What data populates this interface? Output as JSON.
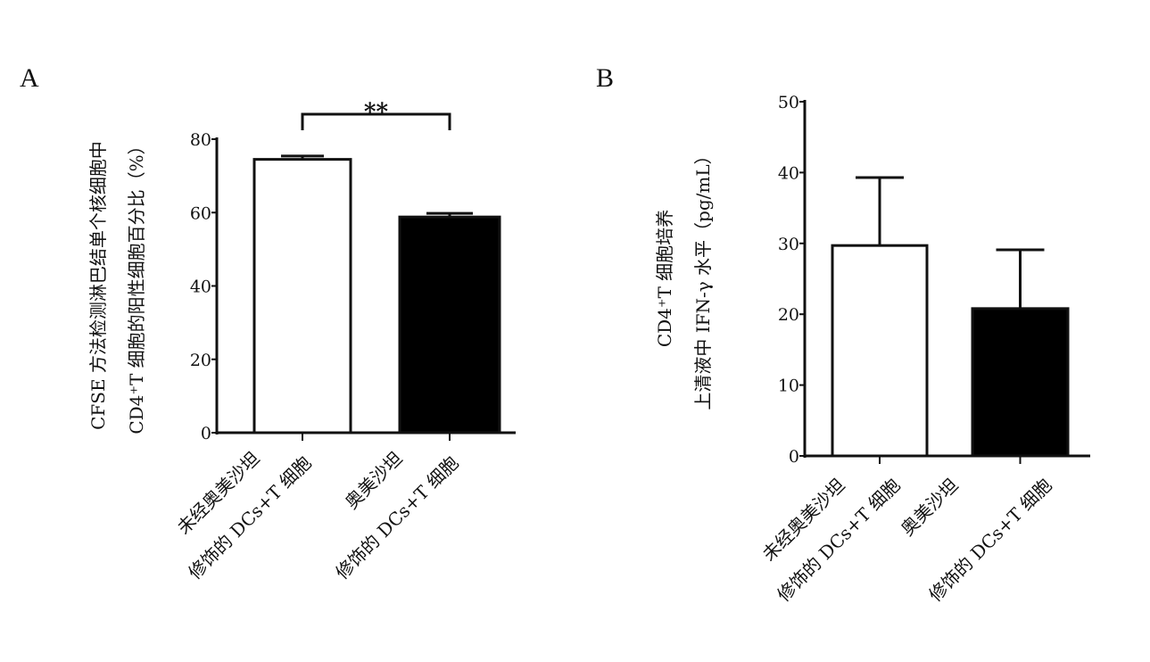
{
  "chart_data": [
    {
      "panel": "A",
      "type": "bar",
      "ylabel_lines": [
        "CFSE 方法检测淋巴结单个核细胞中",
        "CD4⁺T 细胞的阳性细胞百分比（%）"
      ],
      "categories": [
        [
          "未经奥美沙坦",
          "修饰的 DCs+T 细胞"
        ],
        [
          "奥美沙坦",
          "修饰的 DCs+T 细胞"
        ]
      ],
      "values": [
        74.5,
        58.8
      ],
      "error_upper": [
        75.4,
        59.8
      ],
      "bar_colors": [
        "#ffffff",
        "#000000"
      ],
      "ylim": [
        0,
        80
      ],
      "yticks": [
        0,
        20,
        40,
        60,
        80
      ],
      "significance": "**",
      "grid": false
    },
    {
      "panel": "B",
      "type": "bar",
      "ylabel_lines": [
        "CD4⁺T 细胞培养",
        "上清液中 IFN-γ 水平（pg/mL）"
      ],
      "categories": [
        [
          "未经奥美沙坦",
          "修饰的 DCs+T 细胞"
        ],
        [
          "奥美沙坦",
          "修饰的 DCs+T 细胞"
        ]
      ],
      "values": [
        29.7,
        20.8
      ],
      "error_upper": [
        39.3,
        29.1
      ],
      "bar_colors": [
        "#ffffff",
        "#000000"
      ],
      "ylim": [
        0,
        50
      ],
      "yticks": [
        0,
        10,
        20,
        30,
        40,
        50
      ],
      "grid": false
    }
  ]
}
